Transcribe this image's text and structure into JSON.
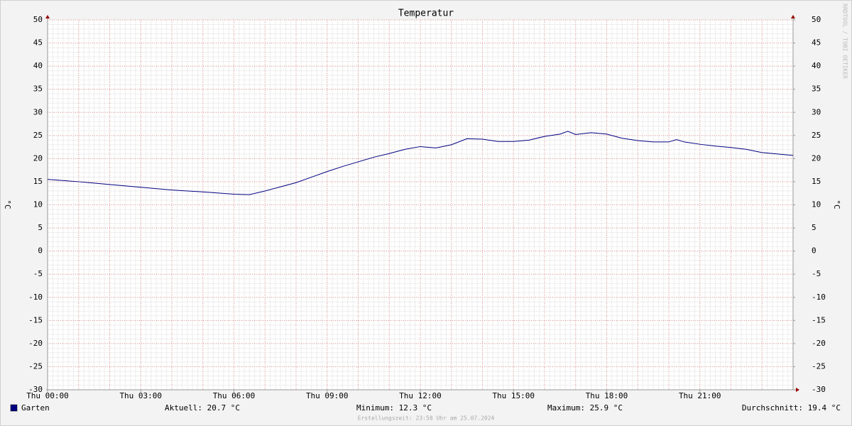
{
  "chart_data": {
    "type": "line",
    "title": "Temperatur",
    "y_label": "°C",
    "y2_label": "°C",
    "watermark": "RRDTOOL / TOBI OETIKER",
    "xlim": [
      0,
      24
    ],
    "xticks": [
      {
        "value": 0,
        "label": "Thu 00:00"
      },
      {
        "value": 3,
        "label": "Thu 03:00"
      },
      {
        "value": 6,
        "label": "Thu 06:00"
      },
      {
        "value": 9,
        "label": "Thu 09:00"
      },
      {
        "value": 12,
        "label": "Thu 12:00"
      },
      {
        "value": 15,
        "label": "Thu 15:00"
      },
      {
        "value": 18,
        "label": "Thu 18:00"
      },
      {
        "value": 21,
        "label": "Thu 21:00"
      }
    ],
    "ylim": [
      -30,
      50
    ],
    "yticks": [
      -30,
      -25,
      -20,
      -15,
      -10,
      -5,
      0,
      5,
      10,
      15,
      20,
      25,
      30,
      35,
      40,
      45,
      50
    ],
    "y2lim": [
      -30,
      50
    ],
    "y2ticks": [
      -30,
      -25,
      -20,
      -15,
      -10,
      -5,
      0,
      5,
      10,
      15,
      20,
      25,
      30,
      35,
      40,
      45,
      50
    ],
    "grid": true,
    "series": [
      {
        "name": "Garten",
        "color": "#000080",
        "x": [
          0,
          1,
          2,
          3,
          4,
          5,
          6,
          6.5,
          7,
          7.5,
          8,
          8.5,
          9,
          9.5,
          10,
          10.5,
          11,
          11.5,
          12,
          12.5,
          13,
          13.5,
          14,
          14.5,
          15,
          15.5,
          16,
          16.5,
          16.75,
          17,
          17.5,
          18,
          18.5,
          19,
          19.5,
          20,
          20.25,
          20.5,
          21,
          21.5,
          22,
          22.5,
          23,
          23.5,
          24
        ],
        "values": [
          15.5,
          15.0,
          14.4,
          13.8,
          13.2,
          12.8,
          12.3,
          12.2,
          13.0,
          13.9,
          14.8,
          16.0,
          17.2,
          18.3,
          19.3,
          20.3,
          21.1,
          22.0,
          22.6,
          22.3,
          23.0,
          24.3,
          24.2,
          23.7,
          23.7,
          24.0,
          24.8,
          25.3,
          25.9,
          25.2,
          25.6,
          25.3,
          24.4,
          23.9,
          23.6,
          23.6,
          24.1,
          23.6,
          23.1,
          22.7,
          22.4,
          22.0,
          21.3,
          21.0,
          20.7
        ]
      }
    ],
    "stats": [
      "Aktuell: 20.7 °C",
      "Minimum: 12.3 °C",
      "Maximum: 25.9 °C",
      "Durchschnitt: 19.4 °C"
    ],
    "footer": "Erstellungszeit: 23:58 Uhr am 25.07.2024"
  }
}
